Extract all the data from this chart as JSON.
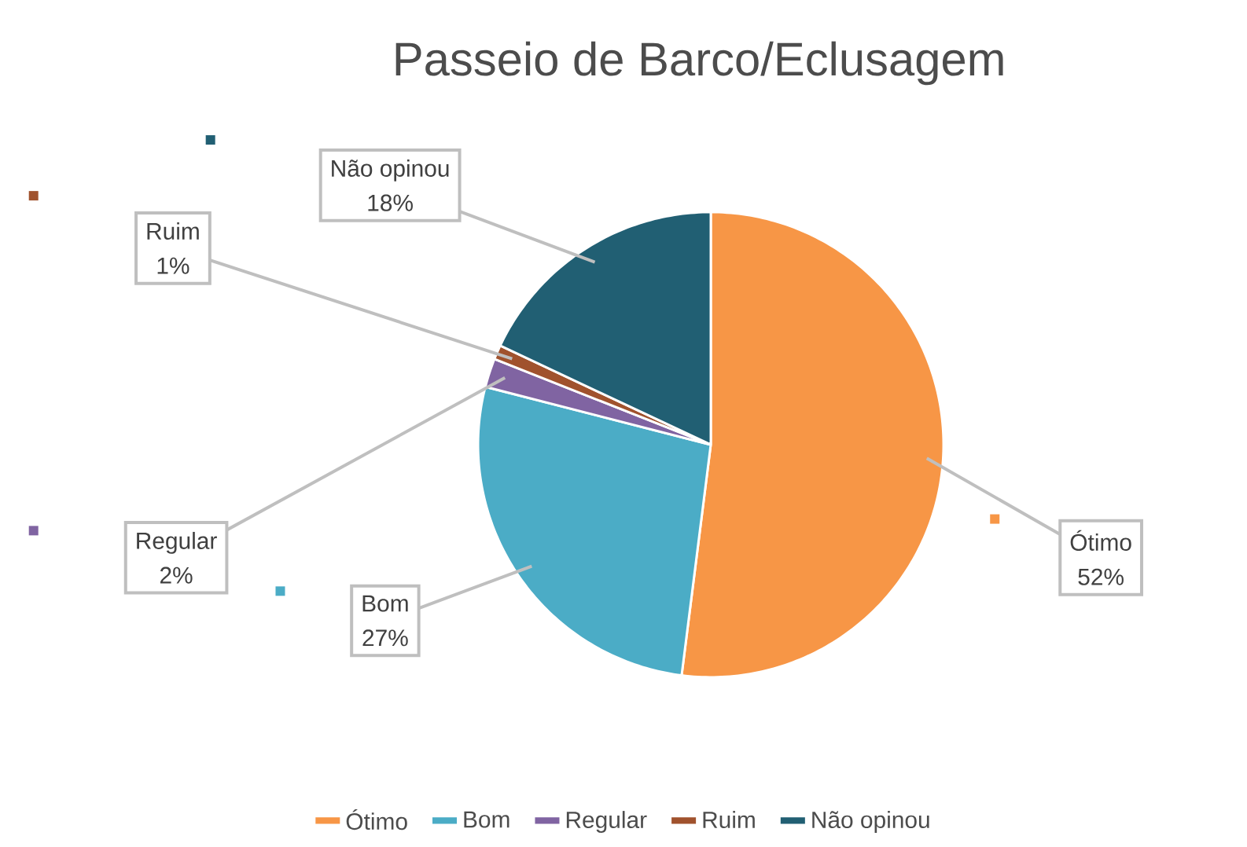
{
  "chart_data": {
    "type": "pie",
    "title": "Passeio de Barco/Eclusagem",
    "categories": [
      "Ótimo",
      "Bom",
      "Regular",
      "Ruim",
      "Não opinou"
    ],
    "values": [
      52,
      27,
      2,
      1,
      18
    ],
    "value_labels": [
      "52%",
      "27%",
      "2%",
      "1%",
      "18%"
    ],
    "colors": [
      "#f79646",
      "#4bacc6",
      "#8064a2",
      "#a0522d",
      "#215f73"
    ],
    "legend": "bottom"
  }
}
